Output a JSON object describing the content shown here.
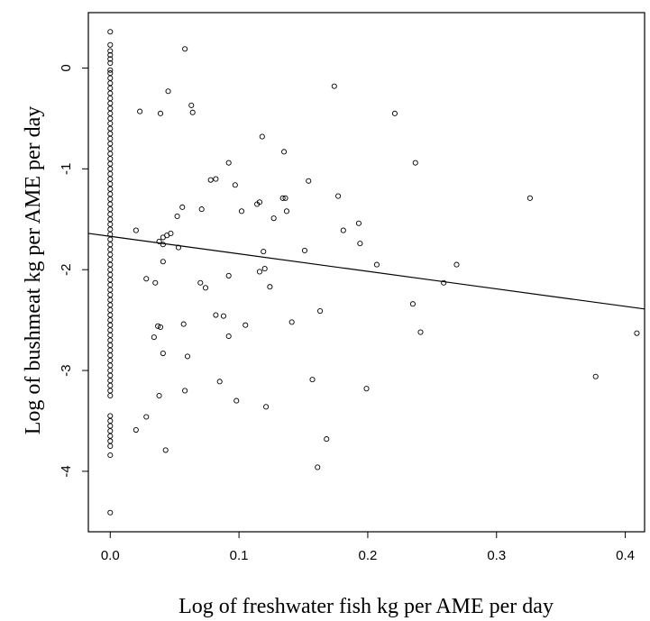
{
  "chart_data": {
    "type": "scatter",
    "title": "",
    "xlabel": "Log of freshwater fish kg per AME per day",
    "ylabel": "Log of bushmeat kg per AME per day",
    "xlim": [
      -0.017,
      0.415
    ],
    "ylim": [
      -4.6,
      0.55
    ],
    "xticks": [
      0.0,
      0.1,
      0.2,
      0.3,
      0.4
    ],
    "xtick_labels": [
      "0.0",
      "0.1",
      "0.2",
      "0.3",
      "0.4"
    ],
    "yticks": [
      0,
      -1,
      -2,
      -3,
      -4
    ],
    "ytick_labels": [
      "0",
      "-1",
      "-2",
      "-3",
      "-4"
    ],
    "grid": false,
    "regression_line": {
      "x": [
        -0.017,
        0.415
      ],
      "y": [
        -1.64,
        -2.39
      ]
    },
    "zero_x_values": [
      0.36,
      0.23,
      0.17,
      0.13,
      0.09,
      0.05,
      -0.02,
      -0.05,
      -0.1,
      -0.15,
      -0.2,
      -0.25,
      -0.3,
      -0.35,
      -0.4,
      -0.45,
      -0.5,
      -0.55,
      -0.6,
      -0.65,
      -0.7,
      -0.75,
      -0.8,
      -0.85,
      -0.9,
      -0.95,
      -1.0,
      -1.05,
      -1.1,
      -1.15,
      -1.2,
      -1.25,
      -1.3,
      -1.35,
      -1.4,
      -1.45,
      -1.5,
      -1.55,
      -1.6,
      -1.65,
      -1.7,
      -1.75,
      -1.8,
      -1.85,
      -1.9,
      -1.95,
      -2.0,
      -2.05,
      -2.1,
      -2.15,
      -2.2,
      -2.25,
      -2.3,
      -2.35,
      -2.4,
      -2.45,
      -2.5,
      -2.55,
      -2.6,
      -2.65,
      -2.7,
      -2.75,
      -2.8,
      -2.85,
      -2.9,
      -2.95,
      -3.0,
      -3.05,
      -3.1,
      -3.15,
      -3.2,
      -3.25,
      -3.45,
      -3.5,
      -3.55,
      -3.6,
      -3.65,
      -3.7,
      -3.75,
      -3.84,
      -4.41
    ],
    "points": [
      {
        "x": 0.058,
        "y": 0.19
      },
      {
        "x": 0.045,
        "y": -0.23
      },
      {
        "x": 0.063,
        "y": -0.37
      },
      {
        "x": 0.023,
        "y": -0.43
      },
      {
        "x": 0.039,
        "y": -0.45
      },
      {
        "x": 0.064,
        "y": -0.44
      },
      {
        "x": 0.174,
        "y": -0.18
      },
      {
        "x": 0.221,
        "y": -0.45
      },
      {
        "x": 0.118,
        "y": -0.68
      },
      {
        "x": 0.135,
        "y": -0.83
      },
      {
        "x": 0.092,
        "y": -0.94
      },
      {
        "x": 0.237,
        "y": -0.94
      },
      {
        "x": 0.078,
        "y": -1.11
      },
      {
        "x": 0.082,
        "y": -1.1
      },
      {
        "x": 0.097,
        "y": -1.16
      },
      {
        "x": 0.154,
        "y": -1.12
      },
      {
        "x": 0.177,
        "y": -1.27
      },
      {
        "x": 0.134,
        "y": -1.29
      },
      {
        "x": 0.136,
        "y": -1.29
      },
      {
        "x": 0.116,
        "y": -1.33
      },
      {
        "x": 0.114,
        "y": -1.35
      },
      {
        "x": 0.056,
        "y": -1.38
      },
      {
        "x": 0.071,
        "y": -1.4
      },
      {
        "x": 0.102,
        "y": -1.42
      },
      {
        "x": 0.137,
        "y": -1.42
      },
      {
        "x": 0.052,
        "y": -1.47
      },
      {
        "x": 0.127,
        "y": -1.49
      },
      {
        "x": 0.193,
        "y": -1.54
      },
      {
        "x": 0.326,
        "y": -1.29
      },
      {
        "x": 0.02,
        "y": -1.61
      },
      {
        "x": 0.181,
        "y": -1.61
      },
      {
        "x": 0.047,
        "y": -1.64
      },
      {
        "x": 0.044,
        "y": -1.66
      },
      {
        "x": 0.041,
        "y": -1.68
      },
      {
        "x": 0.038,
        "y": -1.72
      },
      {
        "x": 0.041,
        "y": -1.75
      },
      {
        "x": 0.053,
        "y": -1.78
      },
      {
        "x": 0.194,
        "y": -1.74
      },
      {
        "x": 0.119,
        "y": -1.82
      },
      {
        "x": 0.151,
        "y": -1.81
      },
      {
        "x": 0.041,
        "y": -1.92
      },
      {
        "x": 0.207,
        "y": -1.95
      },
      {
        "x": 0.269,
        "y": -1.95
      },
      {
        "x": 0.12,
        "y": -1.99
      },
      {
        "x": 0.116,
        "y": -2.02
      },
      {
        "x": 0.092,
        "y": -2.06
      },
      {
        "x": 0.028,
        "y": -2.09
      },
      {
        "x": 0.035,
        "y": -2.13
      },
      {
        "x": 0.07,
        "y": -2.13
      },
      {
        "x": 0.074,
        "y": -2.18
      },
      {
        "x": 0.124,
        "y": -2.17
      },
      {
        "x": 0.259,
        "y": -2.13
      },
      {
        "x": 0.235,
        "y": -2.34
      },
      {
        "x": 0.163,
        "y": -2.41
      },
      {
        "x": 0.082,
        "y": -2.45
      },
      {
        "x": 0.088,
        "y": -2.46
      },
      {
        "x": 0.141,
        "y": -2.52
      },
      {
        "x": 0.057,
        "y": -2.54
      },
      {
        "x": 0.105,
        "y": -2.55
      },
      {
        "x": 0.037,
        "y": -2.56
      },
      {
        "x": 0.039,
        "y": -2.57
      },
      {
        "x": 0.06,
        "y": -2.86
      },
      {
        "x": 0.241,
        "y": -2.62
      },
      {
        "x": 0.034,
        "y": -2.67
      },
      {
        "x": 0.092,
        "y": -2.66
      },
      {
        "x": 0.041,
        "y": -2.83
      },
      {
        "x": 0.409,
        "y": -2.63
      },
      {
        "x": 0.377,
        "y": -3.06
      },
      {
        "x": 0.157,
        "y": -3.09
      },
      {
        "x": 0.085,
        "y": -3.11
      },
      {
        "x": 0.058,
        "y": -3.2
      },
      {
        "x": 0.038,
        "y": -3.25
      },
      {
        "x": 0.199,
        "y": -3.18
      },
      {
        "x": 0.098,
        "y": -3.3
      },
      {
        "x": 0.121,
        "y": -3.36
      },
      {
        "x": 0.028,
        "y": -3.46
      },
      {
        "x": 0.02,
        "y": -3.59
      },
      {
        "x": 0.168,
        "y": -3.68
      },
      {
        "x": 0.043,
        "y": -3.79
      },
      {
        "x": 0.161,
        "y": -3.96
      }
    ]
  }
}
